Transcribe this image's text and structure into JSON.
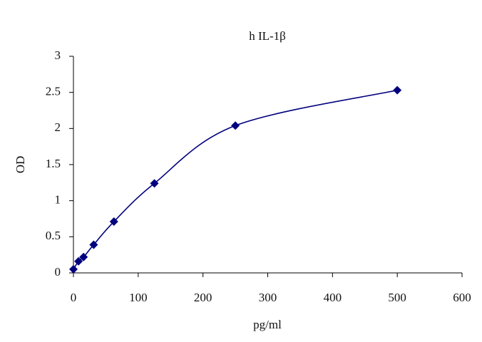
{
  "chart_data": {
    "type": "line",
    "smooth": true,
    "marker": "diamond",
    "title": "h IL-1β",
    "x_label": "pg/ml",
    "y_label": "OD",
    "x": [
      0,
      7.8,
      15.6,
      31.25,
      62.5,
      125,
      250,
      500
    ],
    "series": [
      {
        "color": "#00007f",
        "values": [
          0.05,
          0.16,
          0.22,
          0.39,
          0.71,
          1.24,
          2.04,
          2.53
        ]
      }
    ],
    "xlim": [
      0,
      600
    ],
    "xticks": [
      0,
      100,
      200,
      300,
      400,
      500,
      600
    ],
    "ylim": [
      0,
      3
    ],
    "yticks": [
      0,
      0.5,
      1,
      1.5,
      2,
      2.5,
      3
    ],
    "grid": false
  }
}
